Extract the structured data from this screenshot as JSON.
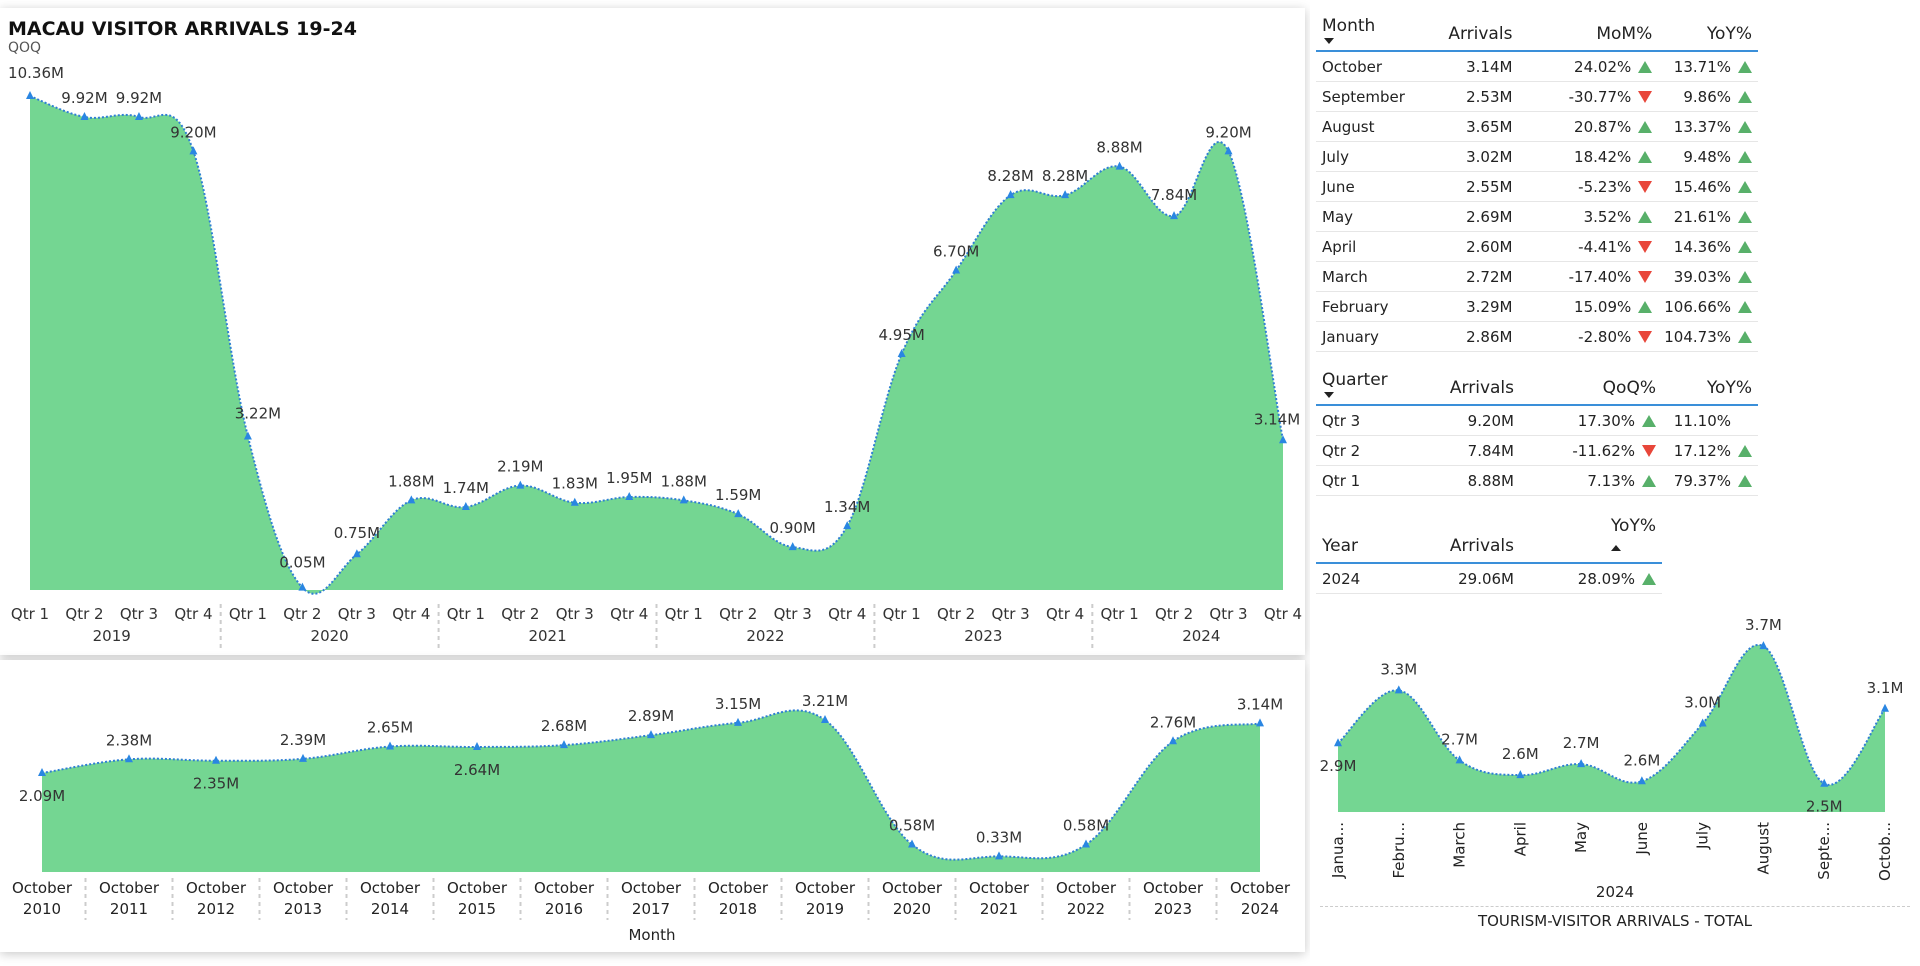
{
  "header": {
    "title": "MACAU VISITOR ARRIVALS 19-24",
    "subtitle": "QOQ"
  },
  "colors": {
    "area": "#74d692",
    "line": "#2f7fd4",
    "marker": "#2a86e2",
    "up": "#58b06a",
    "down": "#e8463a",
    "accent_rule": "#3a8fd9"
  },
  "chart_data": [
    {
      "type": "area",
      "quarters": [
        "Qtr 1",
        "Qtr 2",
        "Qtr 3",
        "Qtr 4"
      ],
      "years": [
        "2019",
        "2020",
        "2021",
        "2022",
        "2023",
        "2024"
      ],
      "values": [
        10.36,
        9.92,
        9.92,
        9.2,
        3.22,
        0.05,
        0.75,
        1.88,
        1.74,
        2.19,
        1.83,
        1.95,
        1.88,
        1.59,
        0.9,
        1.34,
        4.95,
        6.7,
        8.28,
        8.28,
        8.88,
        7.84,
        9.2,
        3.14
      ],
      "labels": [
        "10.36M",
        "9.92M",
        "9.92M",
        "9.20M",
        "3.22M",
        "0.05M",
        "0.75M",
        "1.88M",
        "1.74M",
        "2.19M",
        "1.83M",
        "1.95M",
        "1.88M",
        "1.59M",
        "0.90M",
        "1.34M",
        "4.95M",
        "6.70M",
        "8.28M",
        "8.28M",
        "8.88M",
        "7.84M",
        "9.20M",
        "3.14M"
      ],
      "ylim": [
        0,
        10.36
      ]
    },
    {
      "type": "area",
      "categories": [
        "October\n2010",
        "October\n2011",
        "October\n2012",
        "October\n2013",
        "October\n2014",
        "October\n2015",
        "October\n2016",
        "October\n2017",
        "October\n2018",
        "October\n2019",
        "October\n2020",
        "October\n2021",
        "October\n2022",
        "October\n2023",
        "October\n2024"
      ],
      "values": [
        2.09,
        2.38,
        2.35,
        2.39,
        2.65,
        2.64,
        2.68,
        2.89,
        3.15,
        3.21,
        0.58,
        0.33,
        0.58,
        2.76,
        3.14
      ],
      "labels": [
        "2.09M",
        "2.38M",
        "2.35M",
        "2.39M",
        "2.65M",
        "2.64M",
        "2.68M",
        "2.89M",
        "3.15M",
        "3.21M",
        "0.58M",
        "0.33M",
        "0.58M",
        "2.76M",
        "3.14M"
      ],
      "xlabel": "Month",
      "ylim": [
        0,
        3.21
      ]
    },
    {
      "type": "area",
      "categories": [
        "Janua...",
        "Febru...",
        "March",
        "April",
        "May",
        "June",
        "July",
        "August",
        "Septe...",
        "Octob..."
      ],
      "values": [
        2.86,
        3.29,
        2.72,
        2.6,
        2.69,
        2.55,
        3.02,
        3.65,
        2.53,
        3.14
      ],
      "labels": [
        "2.9M",
        "3.3M",
        "2.7M",
        "2.6M",
        "2.7M",
        "2.6M",
        "3.0M",
        "3.7M",
        "2.5M",
        "3.1M"
      ],
      "xlabel": "2024",
      "title": "TOURISM-VISITOR ARRIVALS - TOTAL"
    }
  ],
  "month_table": {
    "headers": [
      "Month",
      "Arrivals",
      "MoM%",
      "YoY%"
    ],
    "rows": [
      {
        "month": "October",
        "arrivals": "3.14M",
        "mom": "24.02%",
        "mom_dir": "up",
        "yoy": "13.71%",
        "yoy_dir": "up"
      },
      {
        "month": "September",
        "arrivals": "2.53M",
        "mom": "-30.77%",
        "mom_dir": "down",
        "yoy": "9.86%",
        "yoy_dir": "up"
      },
      {
        "month": "August",
        "arrivals": "3.65M",
        "mom": "20.87%",
        "mom_dir": "up",
        "yoy": "13.37%",
        "yoy_dir": "up"
      },
      {
        "month": "July",
        "arrivals": "3.02M",
        "mom": "18.42%",
        "mom_dir": "up",
        "yoy": "9.48%",
        "yoy_dir": "up"
      },
      {
        "month": "June",
        "arrivals": "2.55M",
        "mom": "-5.23%",
        "mom_dir": "down",
        "yoy": "15.46%",
        "yoy_dir": "up"
      },
      {
        "month": "May",
        "arrivals": "2.69M",
        "mom": "3.52%",
        "mom_dir": "up",
        "yoy": "21.61%",
        "yoy_dir": "up"
      },
      {
        "month": "April",
        "arrivals": "2.60M",
        "mom": "-4.41%",
        "mom_dir": "down",
        "yoy": "14.36%",
        "yoy_dir": "up"
      },
      {
        "month": "March",
        "arrivals": "2.72M",
        "mom": "-17.40%",
        "mom_dir": "down",
        "yoy": "39.03%",
        "yoy_dir": "up"
      },
      {
        "month": "February",
        "arrivals": "3.29M",
        "mom": "15.09%",
        "mom_dir": "up",
        "yoy": "106.66%",
        "yoy_dir": "up"
      },
      {
        "month": "January",
        "arrivals": "2.86M",
        "mom": "-2.80%",
        "mom_dir": "down",
        "yoy": "104.73%",
        "yoy_dir": "up"
      }
    ]
  },
  "quarter_table": {
    "headers": [
      "Quarter",
      "Arrivals",
      "QoQ%",
      "YoY%"
    ],
    "rows": [
      {
        "quarter": "Qtr 3",
        "arrivals": "9.20M",
        "qoq": "17.30%",
        "qoq_dir": "up",
        "yoy": "11.10%",
        "yoy_dir": "none"
      },
      {
        "quarter": "Qtr 2",
        "arrivals": "7.84M",
        "qoq": "-11.62%",
        "qoq_dir": "down",
        "yoy": "17.12%",
        "yoy_dir": "up"
      },
      {
        "quarter": "Qtr 1",
        "arrivals": "8.88M",
        "qoq": "7.13%",
        "qoq_dir": "up",
        "yoy": "79.37%",
        "yoy_dir": "up"
      }
    ]
  },
  "year_table": {
    "headers": [
      "Year",
      "Arrivals",
      "YoY%"
    ],
    "rows": [
      {
        "year": "2024",
        "arrivals": "29.06M",
        "yoy": "28.09%",
        "yoy_dir": "up"
      }
    ]
  }
}
